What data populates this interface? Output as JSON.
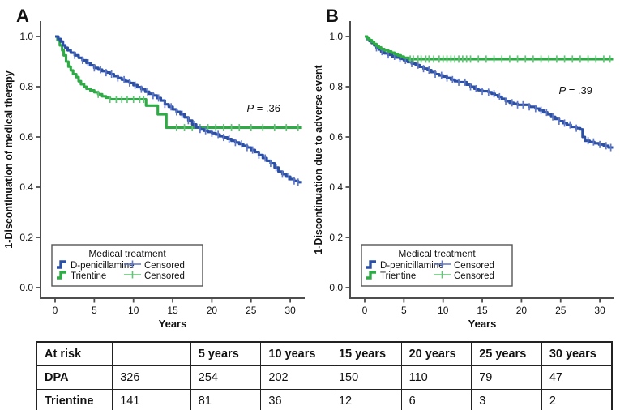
{
  "colors": {
    "dpa": "#2a4fa5",
    "trientine": "#2dab44",
    "dpa_censor": "#5f77c4",
    "trientine_censor": "#63c277",
    "axis": "#4d4d4d",
    "text": "#111111",
    "legend_border": "#555555"
  },
  "chart_data": [
    {
      "type": "line",
      "panel_label": "A",
      "ylabel": "1-Discontinuation of medical therapy",
      "xlabel": "Years",
      "xlim": [
        0,
        31.5
      ],
      "ylim": [
        0,
        1
      ],
      "xticks": [
        0,
        5,
        10,
        15,
        20,
        25,
        30
      ],
      "yticks": [
        "0.0",
        "0.2",
        "0.4",
        "0.6",
        "0.8",
        "1.0"
      ],
      "grid": false,
      "p_italic": "P",
      "p_rest": " = .36",
      "p_x": 346,
      "p_y": 138,
      "legend": {
        "title": "Medical treatment",
        "items": [
          {
            "label": "D-penicillamine",
            "color_key": "dpa"
          },
          {
            "label": "Trientine",
            "color_key": "trientine"
          }
        ],
        "censored": [
          {
            "label": "Censored",
            "color_key": "dpa_censor"
          },
          {
            "label": "Censored",
            "color_key": "trientine_censor"
          }
        ]
      },
      "series": [
        {
          "name": "Trientine",
          "color_key": "trientine",
          "censor_color_key": "trientine_censor",
          "points": [
            [
              0,
              1
            ],
            [
              0.3,
              0.985
            ],
            [
              0.6,
              0.965
            ],
            [
              0.9,
              0.945
            ],
            [
              1.1,
              0.925
            ],
            [
              1.4,
              0.9
            ],
            [
              1.7,
              0.88
            ],
            [
              2,
              0.865
            ],
            [
              2.3,
              0.85
            ],
            [
              2.7,
              0.838
            ],
            [
              3,
              0.822
            ],
            [
              3.3,
              0.81
            ],
            [
              3.7,
              0.8
            ],
            [
              4,
              0.792
            ],
            [
              4.5,
              0.785
            ],
            [
              5,
              0.778
            ],
            [
              5.5,
              0.77
            ],
            [
              6,
              0.762
            ],
            [
              6.5,
              0.756
            ],
            [
              7,
              0.75
            ],
            [
              11.6,
              0.725
            ],
            [
              13.1,
              0.69
            ],
            [
              14.2,
              0.637
            ]
          ],
          "censor_times": [
            5.5,
            7,
            7.8,
            8.5,
            9.2,
            10,
            10.8,
            11.3,
            15.5,
            16.5,
            17.5,
            18.5,
            19.5,
            20.5,
            21.5,
            22.5,
            23.5,
            25,
            26.5,
            28,
            29.5,
            31
          ]
        },
        {
          "name": "D-penicillamine",
          "color_key": "dpa",
          "censor_color_key": "dpa_censor",
          "points": [
            [
              0,
              1
            ],
            [
              0.4,
              0.99
            ],
            [
              0.7,
              0.98
            ],
            [
              1,
              0.965
            ],
            [
              1.3,
              0.955
            ],
            [
              1.6,
              0.945
            ],
            [
              2,
              0.935
            ],
            [
              2.5,
              0.925
            ],
            [
              3,
              0.915
            ],
            [
              3.5,
              0.905
            ],
            [
              4,
              0.895
            ],
            [
              4.5,
              0.885
            ],
            [
              5,
              0.875
            ],
            [
              5.5,
              0.868
            ],
            [
              6,
              0.862
            ],
            [
              6.5,
              0.856
            ],
            [
              7,
              0.85
            ],
            [
              7.5,
              0.842
            ],
            [
              8,
              0.835
            ],
            [
              8.5,
              0.828
            ],
            [
              9,
              0.822
            ],
            [
              9.5,
              0.815
            ],
            [
              10,
              0.806
            ],
            [
              10.5,
              0.798
            ],
            [
              11,
              0.79
            ],
            [
              11.5,
              0.78
            ],
            [
              12,
              0.772
            ],
            [
              12.5,
              0.765
            ],
            [
              13,
              0.755
            ],
            [
              13.5,
              0.745
            ],
            [
              14,
              0.73
            ],
            [
              14.5,
              0.72
            ],
            [
              15,
              0.71
            ],
            [
              15.5,
              0.7
            ],
            [
              16,
              0.69
            ],
            [
              16.5,
              0.678
            ],
            [
              17,
              0.665
            ],
            [
              17.5,
              0.65
            ],
            [
              18,
              0.638
            ],
            [
              18.5,
              0.63
            ],
            [
              19,
              0.625
            ],
            [
              19.5,
              0.62
            ],
            [
              20,
              0.615
            ],
            [
              20.5,
              0.61
            ],
            [
              21,
              0.603
            ],
            [
              21.5,
              0.598
            ],
            [
              22,
              0.592
            ],
            [
              22.5,
              0.585
            ],
            [
              23,
              0.578
            ],
            [
              23.5,
              0.572
            ],
            [
              24,
              0.565
            ],
            [
              24.5,
              0.558
            ],
            [
              25,
              0.548
            ],
            [
              25.5,
              0.54
            ],
            [
              26,
              0.528
            ],
            [
              26.5,
              0.516
            ],
            [
              27,
              0.505
            ],
            [
              27.5,
              0.495
            ],
            [
              28,
              0.478
            ],
            [
              28.5,
              0.462
            ],
            [
              29,
              0.452
            ],
            [
              29.5,
              0.442
            ],
            [
              30,
              0.432
            ],
            [
              30.5,
              0.425
            ],
            [
              31,
              0.42
            ]
          ],
          "censor_times": [
            2.5,
            3.5,
            4.2,
            5,
            5.8,
            6.5,
            7.2,
            8,
            8.8,
            9.5,
            10.2,
            11,
            11.8,
            12.5,
            13.2,
            14,
            14.8,
            15.5,
            16.2,
            17,
            17.8,
            18.5,
            19.2,
            20,
            20.8,
            21.5,
            22.2,
            23,
            23.8,
            24.5,
            25.2,
            26,
            26.8,
            27.5,
            28.2,
            29,
            29.8,
            30.5,
            31
          ]
        }
      ]
    },
    {
      "type": "line",
      "panel_label": "B",
      "ylabel": "1-Discontinuation due to adverse event",
      "xlabel": "Years",
      "xlim": [
        0,
        31.7
      ],
      "ylim": [
        0,
        1
      ],
      "xticks": [
        0,
        5,
        10,
        15,
        20,
        25,
        30
      ],
      "yticks": [
        "0.0",
        "0.2",
        "0.4",
        "0.6",
        "0.8",
        "1.0"
      ],
      "grid": false,
      "p_italic": "P",
      "p_rest": " = .39",
      "p_x": 349,
      "p_y": 116,
      "legend": {
        "title": "Medical treatment",
        "items": [
          {
            "label": "D-penicillamine",
            "color_key": "dpa"
          },
          {
            "label": "Trientine",
            "color_key": "trientine"
          }
        ],
        "censored": [
          {
            "label": "Censored",
            "color_key": "dpa_censor"
          },
          {
            "label": "Censored",
            "color_key": "trientine_censor"
          }
        ]
      },
      "series": [
        {
          "name": "D-penicillamine",
          "color_key": "dpa",
          "censor_color_key": "dpa_censor",
          "points": [
            [
              0,
              1
            ],
            [
              0.3,
              0.99
            ],
            [
              0.6,
              0.982
            ],
            [
              0.9,
              0.974
            ],
            [
              1.2,
              0.965
            ],
            [
              1.5,
              0.955
            ],
            [
              1.8,
              0.948
            ],
            [
              2.1,
              0.94
            ],
            [
              2.5,
              0.933
            ],
            [
              3,
              0.927
            ],
            [
              3.5,
              0.921
            ],
            [
              4,
              0.916
            ],
            [
              4.5,
              0.911
            ],
            [
              5,
              0.905
            ],
            [
              5.5,
              0.898
            ],
            [
              6,
              0.892
            ],
            [
              6.5,
              0.886
            ],
            [
              7,
              0.879
            ],
            [
              7.5,
              0.872
            ],
            [
              8,
              0.866
            ],
            [
              8.5,
              0.858
            ],
            [
              9,
              0.85
            ],
            [
              9.5,
              0.845
            ],
            [
              10,
              0.84
            ],
            [
              10.5,
              0.835
            ],
            [
              11,
              0.828
            ],
            [
              11.5,
              0.822
            ],
            [
              12,
              0.818
            ],
            [
              13,
              0.808
            ],
            [
              13.5,
              0.8
            ],
            [
              14,
              0.792
            ],
            [
              14.5,
              0.786
            ],
            [
              15,
              0.782
            ],
            [
              15.8,
              0.778
            ],
            [
              16.2,
              0.772
            ],
            [
              16.6,
              0.766
            ],
            [
              17,
              0.76
            ],
            [
              17.5,
              0.752
            ],
            [
              18,
              0.742
            ],
            [
              18.5,
              0.736
            ],
            [
              19,
              0.732
            ],
            [
              19.5,
              0.728
            ],
            [
              21,
              0.72
            ],
            [
              21.8,
              0.713
            ],
            [
              22.3,
              0.706
            ],
            [
              22.8,
              0.698
            ],
            [
              23.3,
              0.69
            ],
            [
              23.8,
              0.68
            ],
            [
              24.3,
              0.672
            ],
            [
              24.8,
              0.663
            ],
            [
              25.3,
              0.655
            ],
            [
              25.8,
              0.648
            ],
            [
              26.3,
              0.64
            ],
            [
              27,
              0.635
            ],
            [
              27.5,
              0.63
            ],
            [
              27.8,
              0.6
            ],
            [
              28.1,
              0.585
            ],
            [
              28.7,
              0.58
            ],
            [
              29.3,
              0.575
            ],
            [
              29.9,
              0.57
            ],
            [
              30.5,
              0.565
            ],
            [
              31.1,
              0.558
            ]
          ],
          "censor_times": [
            1.5,
            2.2,
            3,
            3.8,
            4.5,
            5.2,
            6,
            6.8,
            7.5,
            8.2,
            9,
            9.8,
            10.5,
            11.2,
            12,
            12.8,
            13.5,
            14.2,
            15,
            15.8,
            16.5,
            17.2,
            18,
            18.8,
            19.5,
            20.2,
            21,
            21.8,
            22.5,
            23.2,
            24,
            24.8,
            25.5,
            26.2,
            27,
            28.5,
            29.2,
            30,
            30.8,
            31.4
          ]
        },
        {
          "name": "Trientine",
          "color_key": "trientine",
          "censor_color_key": "trientine_censor",
          "points": [
            [
              0,
              1
            ],
            [
              0.3,
              0.992
            ],
            [
              0.6,
              0.985
            ],
            [
              0.9,
              0.978
            ],
            [
              1.2,
              0.97
            ],
            [
              1.5,
              0.962
            ],
            [
              1.8,
              0.956
            ],
            [
              2.1,
              0.95
            ],
            [
              2.5,
              0.945
            ],
            [
              3,
              0.94
            ],
            [
              3.4,
              0.935
            ],
            [
              3.8,
              0.93
            ],
            [
              4.2,
              0.925
            ],
            [
              4.6,
              0.92
            ],
            [
              5,
              0.915
            ],
            [
              5.6,
              0.91
            ]
          ],
          "censor_times": [
            5.8,
            6.2,
            6.8,
            7.2,
            7.8,
            8.2,
            8.8,
            9.5,
            10,
            10.5,
            11,
            11.5,
            12,
            12.5,
            13,
            13.5,
            14.5,
            15.5,
            16.5,
            17.5,
            18.5,
            19.5,
            20.5,
            21.5,
            22.5,
            23.5,
            24.5,
            25.5,
            26.5,
            27.5,
            28.5,
            29.5,
            30.5,
            31.3
          ]
        }
      ]
    }
  ],
  "table": {
    "header": [
      "At risk",
      "",
      "5 years",
      "10 years",
      "15 years",
      "20 years",
      "25 years",
      "30 years"
    ],
    "rows": [
      {
        "label": "DPA",
        "values": [
          "326",
          "254",
          "202",
          "150",
          "110",
          "79",
          "47"
        ]
      },
      {
        "label": "Trientine",
        "values": [
          "141",
          "81",
          "36",
          "12",
          "6",
          "3",
          "2"
        ]
      }
    ]
  }
}
